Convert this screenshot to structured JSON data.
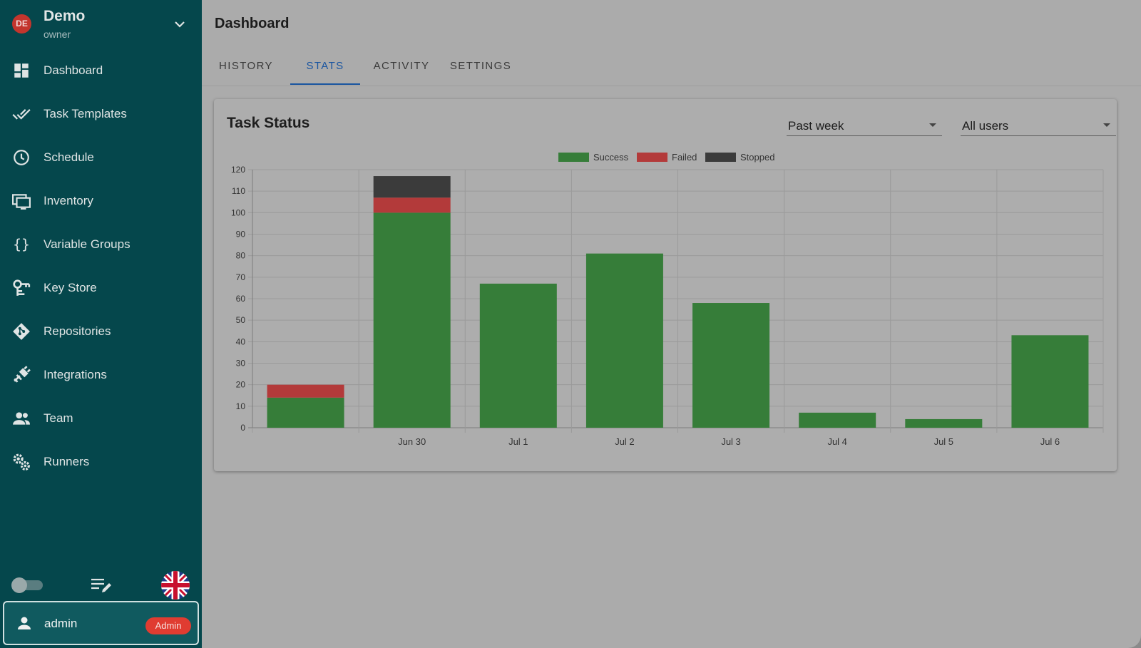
{
  "project": {
    "avatar": "DE",
    "name": "Demo",
    "role": "owner"
  },
  "nav": [
    {
      "label": "Dashboard",
      "icon": "dashboard-icon"
    },
    {
      "label": "Task Templates",
      "icon": "double-check-icon"
    },
    {
      "label": "Schedule",
      "icon": "clock-icon"
    },
    {
      "label": "Inventory",
      "icon": "monitor-icon"
    },
    {
      "label": "Variable Groups",
      "icon": "braces-icon"
    },
    {
      "label": "Key Store",
      "icon": "key-icon"
    },
    {
      "label": "Repositories",
      "icon": "git-icon"
    },
    {
      "label": "Integrations",
      "icon": "plug-icon"
    },
    {
      "label": "Team",
      "icon": "team-icon"
    },
    {
      "label": "Runners",
      "icon": "gears-icon"
    }
  ],
  "user": {
    "name": "admin",
    "badge": "Admin"
  },
  "page": {
    "title": "Dashboard"
  },
  "tabs": [
    {
      "label": "HISTORY"
    },
    {
      "label": "STATS"
    },
    {
      "label": "ACTIVITY"
    },
    {
      "label": "SETTINGS"
    }
  ],
  "active_tab": "STATS",
  "card": {
    "title": "Task Status",
    "period_select": "Past week",
    "user_select": "All users"
  },
  "colors": {
    "sidebar": "#05474c",
    "accent": "#1a55a0",
    "success": "#367d39",
    "failed": "#b33a3a",
    "stopped": "#3b3b3b"
  },
  "chart_data": {
    "type": "bar",
    "stacked": true,
    "categories": [
      "",
      "Jun 30",
      "Jul 1",
      "Jul 2",
      "Jul 3",
      "Jul 4",
      "Jul 5",
      "Jul 6"
    ],
    "series": [
      {
        "name": "Success",
        "color": "#367d39",
        "values": [
          14,
          100,
          67,
          81,
          58,
          7,
          4,
          43
        ]
      },
      {
        "name": "Failed",
        "color": "#b33a3a",
        "values": [
          6,
          7,
          0,
          0,
          0,
          0,
          0,
          0
        ]
      },
      {
        "name": "Stopped",
        "color": "#3b3b3b",
        "values": [
          0,
          10,
          0,
          0,
          0,
          0,
          0,
          0
        ]
      }
    ],
    "ylim": [
      0,
      120
    ],
    "yticks": [
      0,
      10,
      20,
      30,
      40,
      50,
      60,
      70,
      80,
      90,
      100,
      110,
      120
    ],
    "grid": true,
    "legend": "top-center"
  }
}
